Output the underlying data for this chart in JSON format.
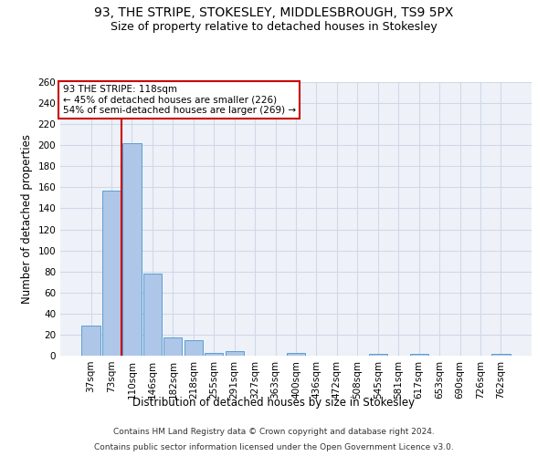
{
  "title": "93, THE STRIPE, STOKESLEY, MIDDLESBROUGH, TS9 5PX",
  "subtitle": "Size of property relative to detached houses in Stokesley",
  "xlabel": "Distribution of detached houses by size in Stokesley",
  "ylabel": "Number of detached properties",
  "bar_labels": [
    "37sqm",
    "73sqm",
    "110sqm",
    "146sqm",
    "182sqm",
    "218sqm",
    "255sqm",
    "291sqm",
    "327sqm",
    "363sqm",
    "400sqm",
    "436sqm",
    "472sqm",
    "508sqm",
    "545sqm",
    "581sqm",
    "617sqm",
    "653sqm",
    "690sqm",
    "726sqm",
    "762sqm"
  ],
  "bar_values": [
    29,
    157,
    202,
    78,
    17,
    15,
    3,
    4,
    0,
    0,
    3,
    0,
    0,
    0,
    2,
    0,
    2,
    0,
    0,
    0,
    2
  ],
  "bar_color": "#aec6e8",
  "bar_edgecolor": "#5a9fd4",
  "vline_color": "#cc0000",
  "ylim": [
    0,
    260
  ],
  "yticks": [
    0,
    20,
    40,
    60,
    80,
    100,
    120,
    140,
    160,
    180,
    200,
    220,
    240,
    260
  ],
  "annotation_title": "93 THE STRIPE: 118sqm",
  "annotation_line1": "← 45% of detached houses are smaller (226)",
  "annotation_line2": "54% of semi-detached houses are larger (269) →",
  "annotation_box_color": "#ffffff",
  "annotation_box_edgecolor": "#cc0000",
  "grid_color": "#d0d8e8",
  "background_color": "#eef2f8",
  "footer1": "Contains HM Land Registry data © Crown copyright and database right 2024.",
  "footer2": "Contains public sector information licensed under the Open Government Licence v3.0.",
  "title_fontsize": 10,
  "subtitle_fontsize": 9,
  "xlabel_fontsize": 8.5,
  "ylabel_fontsize": 8.5,
  "tick_fontsize": 7.5,
  "footer_fontsize": 6.5,
  "annotation_fontsize": 7.5
}
